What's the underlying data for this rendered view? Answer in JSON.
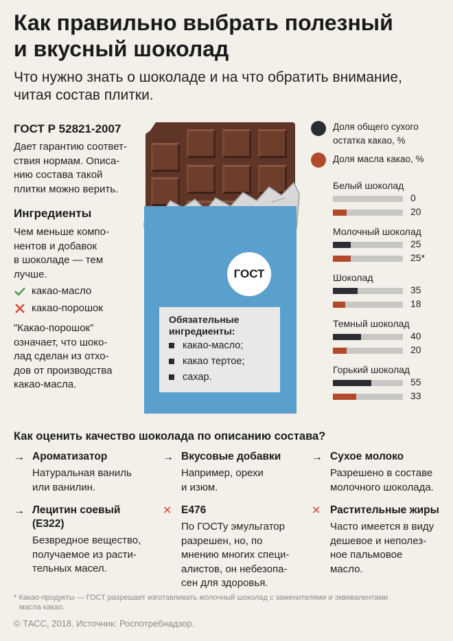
{
  "header": {
    "title_line1": "Как правильно выбрать полезный",
    "title_line2": "и вкусный шоколад",
    "subtitle_line1": "Что нужно знать о шоколаде и на что обратить внимание,",
    "subtitle_line2": "читая состав плитки."
  },
  "gost": {
    "heading": "ГОСТ Р 52821-2007",
    "lines": [
      "Дает гарантию соответ-",
      "ствия нормам. Описа-",
      "нию состава такой",
      "плитки можно верить."
    ]
  },
  "ingredients": {
    "heading": "Ингредиенты",
    "lines": [
      "Чем меньше компо-",
      "нентов и добавок",
      "в шоколаде — тем",
      "лучше."
    ],
    "good": "какао-масло",
    "bad": "какао-порошок",
    "note_lines": [
      "\"Какао-порошок\"",
      "означает, что шоко-",
      "лад сделан из отхо-",
      "дов от производства",
      "какао-масла."
    ]
  },
  "wrapper": {
    "badge": "ГОСТ",
    "box_title_line1": "Обязательные",
    "box_title_line2": "ингредиенты:",
    "items": [
      "какао-масло;",
      "какао тертое;",
      "сахар."
    ]
  },
  "chart_data": {
    "type": "bar",
    "legend": [
      {
        "name_line1": "Доля общего сухого",
        "name_line2": "остатка какао, %",
        "color": "#2b2d33"
      },
      {
        "name_line1": "Доля масла какао, %",
        "name_line2": "",
        "color": "#b04a2a"
      }
    ],
    "max": 100,
    "categories": [
      "Белый шоколад",
      "Молочный шоколад",
      "Шоколад",
      "Темный шоколад",
      "Горький шоколад"
    ],
    "series": [
      {
        "name": "Доля общего сухого остатка какао, %",
        "color": "#2b2d33",
        "values": [
          0,
          25,
          35,
          40,
          55
        ],
        "labels": [
          "0",
          "25",
          "35",
          "40",
          "55"
        ]
      },
      {
        "name": "Доля масла какао, %",
        "color": "#b04a2a",
        "values": [
          20,
          25,
          18,
          20,
          33
        ],
        "labels": [
          "20",
          "25*",
          "18",
          "20",
          "33"
        ]
      }
    ]
  },
  "quality": {
    "heading": "Как оценить качество шоколада по описанию состава?",
    "items": [
      {
        "mark": "→",
        "title_line1": "Ароматизатор",
        "title_line2": "",
        "lines": [
          "Натуральная ваниль",
          "или ванилин."
        ]
      },
      {
        "mark": "→",
        "title_line1": "Вкусовые добавки",
        "title_line2": "",
        "lines": [
          "Например, орехи",
          "и изюм."
        ]
      },
      {
        "mark": "→",
        "title_line1": "Сухое молоко",
        "title_line2": "",
        "lines": [
          "Разрешено в составе",
          "молочного шоколада."
        ]
      },
      {
        "mark": "→",
        "title_line1": "Лецитин соевый",
        "title_line2": "(E322)",
        "lines": [
          "Безвредное вещество,",
          "получаемое из расти-",
          "тельных масел."
        ]
      },
      {
        "mark": "✕",
        "title_line1": "E476",
        "title_line2": "",
        "lines": [
          "По ГОСТу эмульгатор",
          "разрешен, но, по",
          "мнению многих специ-",
          "алистов, он небезопа-",
          "сен для здоровья."
        ]
      },
      {
        "mark": "✕",
        "title_line1": "Растительные жиры",
        "title_line2": "",
        "lines": [
          "Часто имеется в виду",
          "дешевое и неполез-",
          "ное пальмовое",
          "масло."
        ]
      }
    ]
  },
  "footnote_line1": "* Какао-продукты — ГОСТ разрешает изготавливать молочный шоколад с заменителями и эквивалентами",
  "footnote_line2": "масла какао.",
  "copyright": "© ТАСС, 2018. Источник: Роспотребнадзор.",
  "colors": {
    "dark": "#2b2d33",
    "rust": "#b04a2a",
    "wrapper": "#5aa0cf",
    "chocolate": "#5e3527",
    "check": "#3a9a4a",
    "cross": "#d44a3a"
  }
}
